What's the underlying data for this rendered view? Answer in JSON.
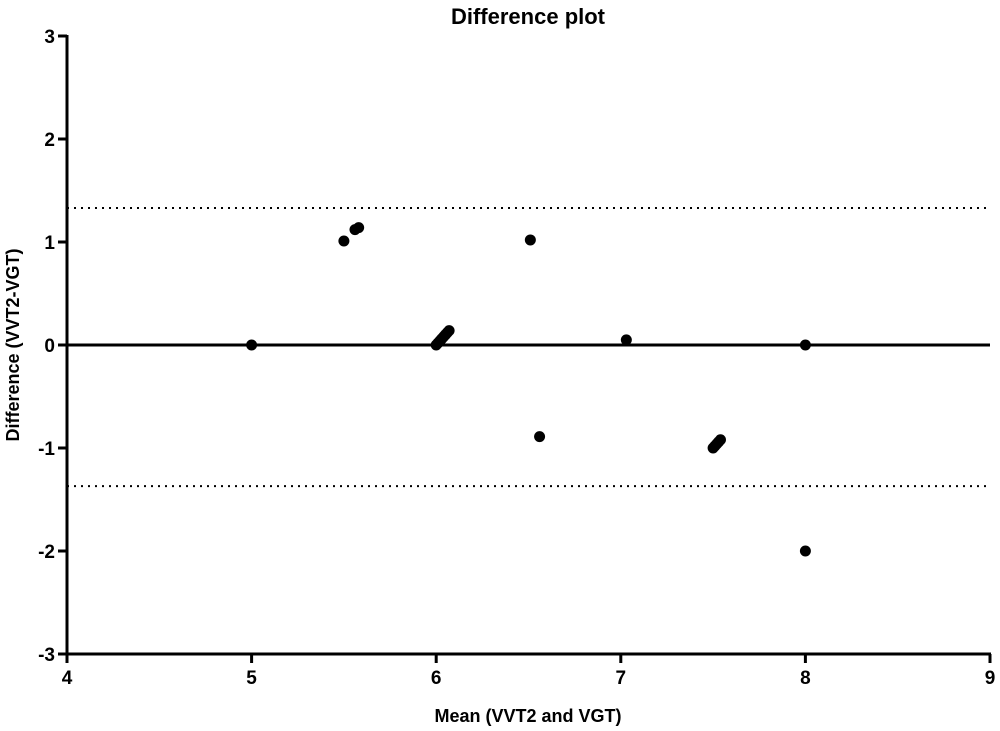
{
  "chart_data": {
    "type": "scatter",
    "title": "Difference plot",
    "xlabel": "Mean (VVT2 and VGT)",
    "ylabel": "Difference (VVT2-VGT)",
    "xlim": [
      4,
      9
    ],
    "ylim": [
      -3,
      3
    ],
    "xticks": [
      4,
      5,
      6,
      7,
      8,
      9
    ],
    "yticks": [
      -3,
      -2,
      -1,
      0,
      1,
      2,
      3
    ],
    "xtick_labels": [
      "4",
      "5",
      "6",
      "7",
      "8",
      "9"
    ],
    "ytick_labels": [
      "-3",
      "-2",
      "-1",
      "0",
      "1",
      "2",
      "3"
    ],
    "grid": false,
    "points": [
      {
        "x": 5.0,
        "y": 0.0
      },
      {
        "x": 5.5,
        "y": 1.01
      },
      {
        "x": 5.56,
        "y": 1.12
      },
      {
        "x": 5.58,
        "y": 1.14
      },
      {
        "x": 6.0,
        "y": 0.0
      },
      {
        "x": 6.01,
        "y": 0.02
      },
      {
        "x": 6.02,
        "y": 0.04
      },
      {
        "x": 6.03,
        "y": 0.06
      },
      {
        "x": 6.04,
        "y": 0.08
      },
      {
        "x": 6.05,
        "y": 0.1
      },
      {
        "x": 6.06,
        "y": 0.12
      },
      {
        "x": 6.07,
        "y": 0.14
      },
      {
        "x": 6.51,
        "y": 1.02
      },
      {
        "x": 6.56,
        "y": -0.89
      },
      {
        "x": 7.03,
        "y": 0.05
      },
      {
        "x": 7.5,
        "y": -1.0
      },
      {
        "x": 7.51,
        "y": -0.98
      },
      {
        "x": 7.52,
        "y": -0.96
      },
      {
        "x": 7.53,
        "y": -0.94
      },
      {
        "x": 7.54,
        "y": -0.92
      },
      {
        "x": 8.0,
        "y": 0.0
      },
      {
        "x": 8.0,
        "y": -2.0
      }
    ],
    "reference_lines": [
      {
        "name": "mean-difference",
        "y": 0.0,
        "style": "solid"
      },
      {
        "name": "upper-limit-of-agreement",
        "y": 1.33,
        "style": "dotted"
      },
      {
        "name": "lower-limit-of-agreement",
        "y": -1.37,
        "style": "dotted"
      }
    ],
    "colors": {
      "points": "#000000",
      "axes": "#000000",
      "lines": "#000000"
    }
  }
}
